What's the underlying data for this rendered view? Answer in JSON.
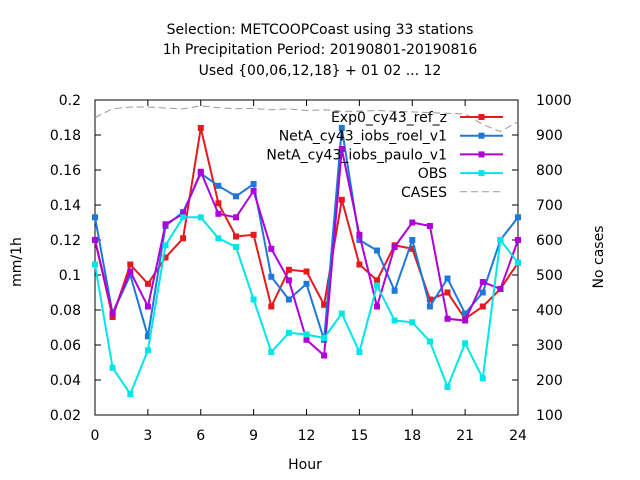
{
  "chart_data": {
    "type": "line",
    "title_lines": [
      "Selection: METCOOPCoast using    33 stations",
      "1h Precipitation    Period: 20190801-20190816",
      "Used {00,06,12,18} + 01 02 ... 12"
    ],
    "xlabel": "Hour",
    "ylabel": "mm/1h",
    "y2label": "No cases",
    "xlim": [
      0,
      24
    ],
    "ylim": [
      0.02,
      0.2
    ],
    "y2lim": [
      100,
      1000
    ],
    "xticks": [
      "0",
      "3",
      "6",
      "9",
      "12",
      "15",
      "18",
      "21",
      "24"
    ],
    "yticks": [
      "0.02",
      "0.04",
      "0.06",
      "0.08",
      "0.1",
      "0.12",
      "0.14",
      "0.16",
      "0.18",
      "0.2"
    ],
    "y2ticks": [
      "100",
      "200",
      "300",
      "400",
      "500",
      "600",
      "700",
      "800",
      "900",
      "1000"
    ],
    "x": [
      0,
      1,
      2,
      3,
      4,
      5,
      6,
      7,
      8,
      9,
      10,
      11,
      12,
      13,
      14,
      15,
      16,
      17,
      18,
      19,
      20,
      21,
      22,
      23,
      24
    ],
    "legend_position": "top-right",
    "series": [
      {
        "name": "Exp0_cy43_ref_z",
        "color": "#e41a1c",
        "values": [
          0.12,
          0.076,
          0.106,
          0.095,
          0.11,
          0.121,
          0.184,
          0.141,
          0.122,
          0.123,
          0.082,
          0.103,
          0.102,
          0.083,
          0.143,
          0.106,
          0.097,
          0.117,
          0.115,
          0.086,
          0.09,
          0.075,
          0.082,
          0.092,
          0.107
        ]
      },
      {
        "name": "NetA_cy43_iobs_roel_v1",
        "color": "#1f78d8",
        "values": [
          0.133,
          0.078,
          0.1,
          0.065,
          0.128,
          0.136,
          0.158,
          0.151,
          0.145,
          0.152,
          0.099,
          0.086,
          0.095,
          0.063,
          0.184,
          0.12,
          0.114,
          0.091,
          0.12,
          0.082,
          0.098,
          0.078,
          0.09,
          0.12,
          0.133
        ]
      },
      {
        "name": "NetA_cy43_iobs_paulo_v1",
        "color": "#b000d8",
        "values": [
          0.12,
          0.078,
          0.102,
          0.082,
          0.129,
          0.135,
          0.159,
          0.135,
          0.133,
          0.148,
          0.115,
          0.097,
          0.063,
          0.054,
          0.172,
          0.123,
          0.082,
          0.116,
          0.13,
          0.128,
          0.075,
          0.074,
          0.096,
          0.092,
          0.12
        ]
      },
      {
        "name": "OBS",
        "color": "#00e5e5",
        "values": [
          0.106,
          0.047,
          0.032,
          0.057,
          0.117,
          0.133,
          0.133,
          0.121,
          0.116,
          0.086,
          0.056,
          0.067,
          0.066,
          0.064,
          0.078,
          0.056,
          0.094,
          0.074,
          0.073,
          0.062,
          0.036,
          0.061,
          0.041,
          0.12,
          0.107
        ]
      },
      {
        "name": "CASES",
        "color": "#999999",
        "axis": "right",
        "dashed": true,
        "values": [
          950,
          975,
          980,
          980,
          977,
          975,
          983,
          978,
          975,
          976,
          972,
          975,
          970,
          972,
          968,
          968,
          970,
          968,
          966,
          964,
          962,
          960,
          930,
          910,
          938
        ]
      }
    ]
  }
}
